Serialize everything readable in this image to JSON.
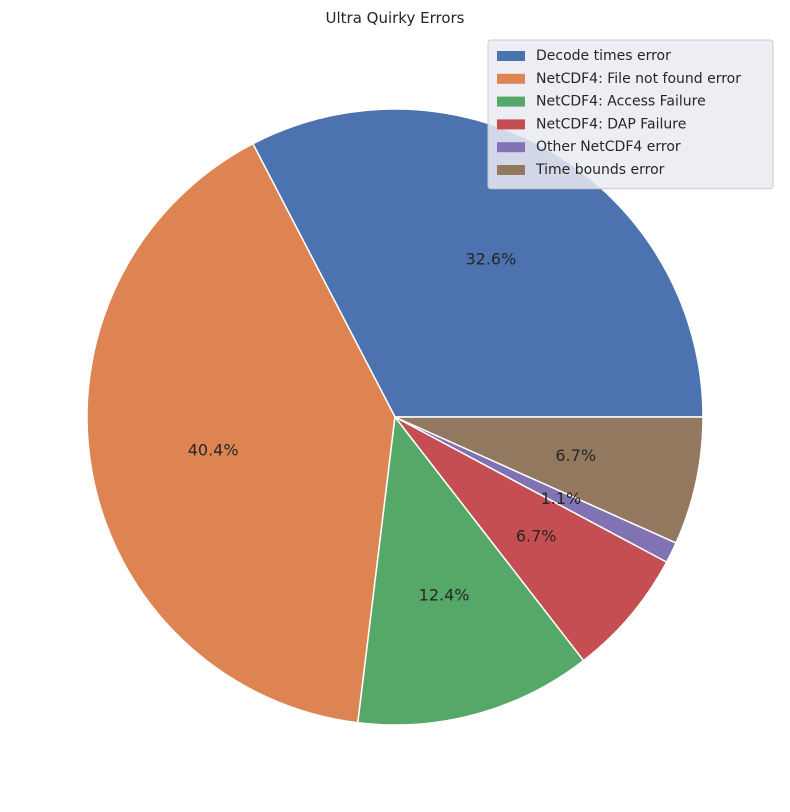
{
  "chart_data": {
    "type": "pie",
    "title": "Ultra Quirky Errors",
    "slices": [
      {
        "label": "Decode times error",
        "percent": 32.6,
        "pct_label": "32.6%",
        "color": "#4c72b0"
      },
      {
        "label": "NetCDF4: File not found error",
        "percent": 40.4,
        "pct_label": "40.4%",
        "color": "#dd8452"
      },
      {
        "label": "NetCDF4: Access Failure",
        "percent": 12.4,
        "pct_label": "12.4%",
        "color": "#55a868"
      },
      {
        "label": "NetCDF4: DAP Failure",
        "percent": 6.7,
        "pct_label": "6.7%",
        "color": "#c44e52"
      },
      {
        "label": "Other NetCDF4 error",
        "percent": 1.1,
        "pct_label": "1.1%",
        "color": "#8172b3"
      },
      {
        "label": "Time bounds error",
        "percent": 6.7,
        "pct_label": "6.7%",
        "color": "#937860"
      }
    ],
    "start_angle": 0,
    "direction": "counterclockwise",
    "legend_position": "top-right",
    "legend_background": "#eaeaf2",
    "edge_color": "#ffffff"
  }
}
